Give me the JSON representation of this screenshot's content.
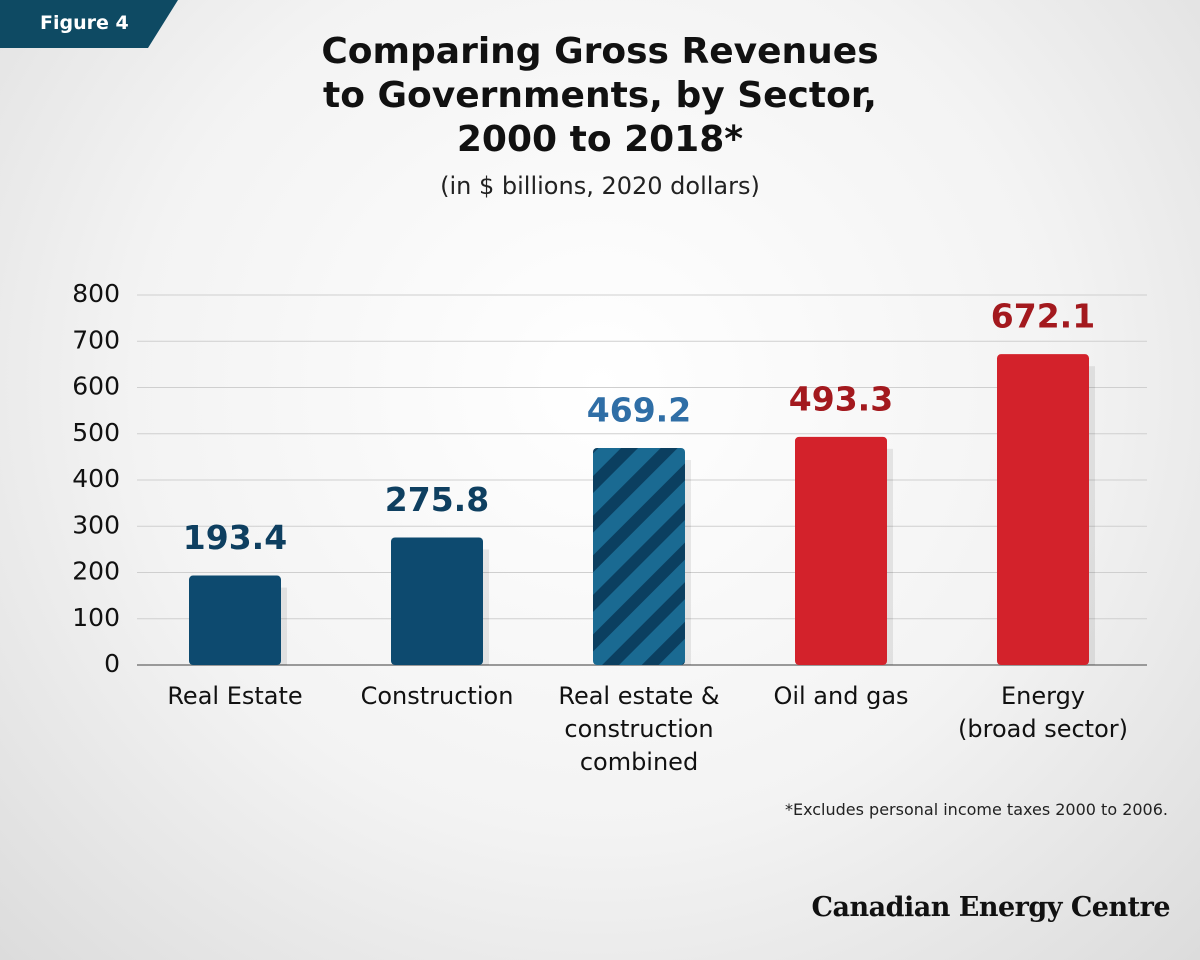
{
  "figure_label": "Figure 4",
  "chart_data": {
    "type": "bar",
    "title": "Comparing Gross Revenues\nto Governments, by Sector,\n2000 to 2018*",
    "subtitle": "(in $ billions, 2020 dollars)",
    "categories": [
      "Real Estate",
      "Construction",
      "Real estate &\nconstruction\ncombined",
      "Oil and gas",
      "Energy\n(broad sector)"
    ],
    "values": [
      193.4,
      275.8,
      469.2,
      493.3,
      672.1
    ],
    "colors": [
      "#0d4a6f",
      "#0d4a6f",
      "#0d4a6f",
      "#d3222b",
      "#d3222b"
    ],
    "hatched": [
      false,
      false,
      true,
      false,
      false
    ],
    "label_colors": [
      "#0e3f60",
      "#0e3f60",
      "#2f6ea6",
      "#a3191e",
      "#a3191e"
    ],
    "ylim": [
      0,
      800
    ],
    "yticks": [
      0,
      100,
      200,
      300,
      400,
      500,
      600,
      700,
      800
    ],
    "grid": true,
    "footnote": "*Excludes personal income taxes 2000 to 2006."
  },
  "brand": "Canadian Energy Centre"
}
